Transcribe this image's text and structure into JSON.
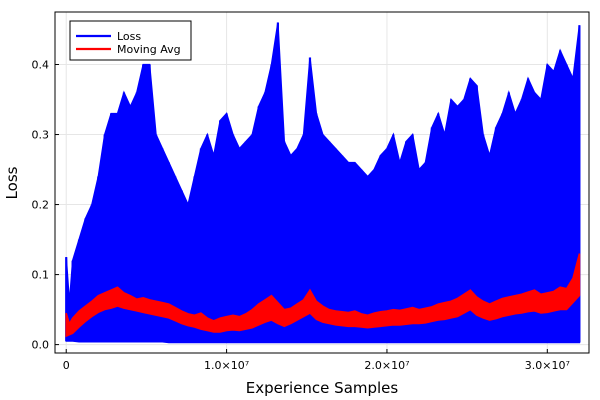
{
  "chart_data": {
    "type": "line",
    "title": "",
    "xlabel": "Experience Samples",
    "ylabel": "Loss",
    "xlim": [
      -700000,
      32600000
    ],
    "ylim": [
      -0.012,
      0.475
    ],
    "grid": true,
    "legend_position": "top-left",
    "x_ticks": [
      {
        "value": 0,
        "label": "0"
      },
      {
        "value": 10000000,
        "label": "1.0×10⁷"
      },
      {
        "value": 20000000,
        "label": "2.0×10⁷"
      },
      {
        "value": 30000000,
        "label": "3.0×10⁷"
      }
    ],
    "y_ticks": [
      {
        "value": 0.0,
        "label": "0.0"
      },
      {
        "value": 0.1,
        "label": "0.1"
      },
      {
        "value": 0.2,
        "label": "0.2"
      },
      {
        "value": 0.3,
        "label": "0.3"
      },
      {
        "value": 0.4,
        "label": "0.4"
      }
    ],
    "series": [
      {
        "name": "Loss",
        "color": "#0000ff",
        "x": [
          0,
          200000,
          400000,
          800000,
          1200000,
          1600000,
          2000000,
          2400000,
          2800000,
          3200000,
          3600000,
          4000000,
          4400000,
          4800000,
          5200000,
          5600000,
          6000000,
          6400000,
          6800000,
          7200000,
          7600000,
          8000000,
          8400000,
          8800000,
          9200000,
          9600000,
          10000000,
          10400000,
          10800000,
          11200000,
          11600000,
          12000000,
          12400000,
          12800000,
          13200000,
          13600000,
          14000000,
          14400000,
          14800000,
          15200000,
          15600000,
          16000000,
          16400000,
          16800000,
          17200000,
          17600000,
          18000000,
          18400000,
          18800000,
          19200000,
          19600000,
          20000000,
          20400000,
          20800000,
          21200000,
          21600000,
          22000000,
          22400000,
          22800000,
          23200000,
          23600000,
          24000000,
          24400000,
          24800000,
          25200000,
          25600000,
          26000000,
          26400000,
          26800000,
          27200000,
          27600000,
          28000000,
          28400000,
          28800000,
          29200000,
          29600000,
          30000000,
          30400000,
          30800000,
          31200000,
          31600000,
          32000000
        ],
        "y_max": [
          0.125,
          0.06,
          0.12,
          0.15,
          0.18,
          0.2,
          0.24,
          0.3,
          0.33,
          0.33,
          0.36,
          0.34,
          0.36,
          0.4,
          0.4,
          0.3,
          0.28,
          0.26,
          0.24,
          0.22,
          0.2,
          0.24,
          0.28,
          0.3,
          0.27,
          0.32,
          0.33,
          0.3,
          0.28,
          0.29,
          0.3,
          0.34,
          0.36,
          0.4,
          0.46,
          0.29,
          0.27,
          0.28,
          0.3,
          0.41,
          0.33,
          0.3,
          0.29,
          0.28,
          0.27,
          0.26,
          0.26,
          0.25,
          0.24,
          0.25,
          0.27,
          0.28,
          0.3,
          0.26,
          0.29,
          0.3,
          0.25,
          0.26,
          0.31,
          0.33,
          0.3,
          0.35,
          0.34,
          0.35,
          0.38,
          0.37,
          0.3,
          0.27,
          0.31,
          0.33,
          0.36,
          0.33,
          0.35,
          0.38,
          0.36,
          0.35,
          0.4,
          0.39,
          0.42,
          0.4,
          0.38,
          0.456
        ],
        "y_min": [
          0.005,
          0.005,
          0.005,
          0.004,
          0.004,
          0.004,
          0.004,
          0.004,
          0.004,
          0.004,
          0.004,
          0.004,
          0.004,
          0.004,
          0.004,
          0.004,
          0.004,
          0.003,
          0.003,
          0.003,
          0.003,
          0.003,
          0.003,
          0.003,
          0.003,
          0.003,
          0.003,
          0.003,
          0.003,
          0.003,
          0.003,
          0.003,
          0.003,
          0.003,
          0.003,
          0.003,
          0.003,
          0.003,
          0.003,
          0.003,
          0.003,
          0.003,
          0.003,
          0.003,
          0.003,
          0.003,
          0.003,
          0.003,
          0.003,
          0.003,
          0.003,
          0.003,
          0.003,
          0.003,
          0.003,
          0.003,
          0.003,
          0.003,
          0.003,
          0.003,
          0.003,
          0.003,
          0.003,
          0.003,
          0.003,
          0.003,
          0.003,
          0.003,
          0.003,
          0.003,
          0.003,
          0.003,
          0.003,
          0.003,
          0.003,
          0.003,
          0.003,
          0.003,
          0.003,
          0.003,
          0.003,
          0.003
        ]
      },
      {
        "name": "Moving Avg",
        "color": "#ff0000",
        "x": [
          0,
          200000,
          400000,
          800000,
          1200000,
          1600000,
          2000000,
          2400000,
          2800000,
          3200000,
          3600000,
          4000000,
          4400000,
          4800000,
          5200000,
          5600000,
          6000000,
          6400000,
          6800000,
          7200000,
          7600000,
          8000000,
          8400000,
          8800000,
          9200000,
          9600000,
          10000000,
          10400000,
          10800000,
          11200000,
          11600000,
          12000000,
          12400000,
          12800000,
          13200000,
          13600000,
          14000000,
          14400000,
          14800000,
          15200000,
          15600000,
          16000000,
          16400000,
          16800000,
          17200000,
          17600000,
          18000000,
          18400000,
          18800000,
          19200000,
          19600000,
          20000000,
          20400000,
          20800000,
          21200000,
          21600000,
          22000000,
          22400000,
          22800000,
          23200000,
          23600000,
          24000000,
          24400000,
          24800000,
          25200000,
          25600000,
          26000000,
          26400000,
          26800000,
          27200000,
          27600000,
          28000000,
          28400000,
          28800000,
          29200000,
          29600000,
          30000000,
          30400000,
          30800000,
          31200000,
          31600000,
          32000000
        ],
        "y_max": [
          0.045,
          0.03,
          0.038,
          0.048,
          0.055,
          0.062,
          0.07,
          0.074,
          0.078,
          0.082,
          0.074,
          0.07,
          0.065,
          0.067,
          0.064,
          0.062,
          0.06,
          0.058,
          0.053,
          0.048,
          0.044,
          0.042,
          0.045,
          0.038,
          0.034,
          0.038,
          0.04,
          0.042,
          0.04,
          0.044,
          0.05,
          0.058,
          0.064,
          0.07,
          0.06,
          0.05,
          0.052,
          0.058,
          0.064,
          0.078,
          0.062,
          0.055,
          0.05,
          0.048,
          0.047,
          0.046,
          0.048,
          0.044,
          0.042,
          0.045,
          0.047,
          0.048,
          0.05,
          0.049,
          0.051,
          0.053,
          0.05,
          0.052,
          0.054,
          0.058,
          0.06,
          0.062,
          0.066,
          0.072,
          0.078,
          0.068,
          0.062,
          0.058,
          0.062,
          0.066,
          0.068,
          0.07,
          0.072,
          0.075,
          0.078,
          0.072,
          0.074,
          0.076,
          0.082,
          0.08,
          0.095,
          0.13
        ],
        "y_min": [
          0.012,
          0.014,
          0.016,
          0.025,
          0.033,
          0.04,
          0.046,
          0.05,
          0.052,
          0.055,
          0.052,
          0.05,
          0.048,
          0.046,
          0.044,
          0.042,
          0.04,
          0.038,
          0.034,
          0.03,
          0.027,
          0.025,
          0.022,
          0.02,
          0.018,
          0.018,
          0.02,
          0.021,
          0.02,
          0.022,
          0.024,
          0.028,
          0.032,
          0.035,
          0.03,
          0.026,
          0.03,
          0.035,
          0.04,
          0.045,
          0.036,
          0.032,
          0.03,
          0.028,
          0.027,
          0.026,
          0.026,
          0.025,
          0.024,
          0.025,
          0.026,
          0.027,
          0.028,
          0.028,
          0.029,
          0.03,
          0.03,
          0.031,
          0.033,
          0.035,
          0.036,
          0.038,
          0.04,
          0.045,
          0.05,
          0.042,
          0.038,
          0.035,
          0.037,
          0.04,
          0.042,
          0.044,
          0.045,
          0.047,
          0.048,
          0.045,
          0.046,
          0.048,
          0.05,
          0.05,
          0.06,
          0.07
        ]
      }
    ]
  }
}
